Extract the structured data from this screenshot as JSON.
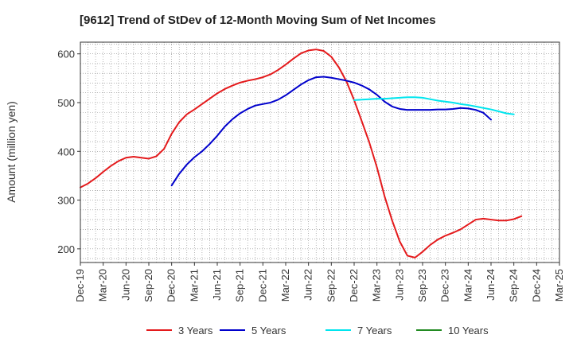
{
  "chart_data": {
    "type": "line",
    "title": "[9612]  Trend of StDev of 12-Month Moving Sum of Net Incomes",
    "xlabel": "",
    "ylabel": "Amount (million yen)",
    "ylim": [
      172,
      624
    ],
    "yticks": [
      200,
      300,
      400,
      500,
      600
    ],
    "grid": true,
    "legend_position": "bottom",
    "x_categories": [
      "Dec-19",
      "Mar-20",
      "Jun-20",
      "Sep-20",
      "Dec-20",
      "Mar-21",
      "Jun-21",
      "Sep-21",
      "Dec-21",
      "Mar-22",
      "Jun-22",
      "Sep-22",
      "Dec-22",
      "Mar-23",
      "Jun-23",
      "Sep-23",
      "Dec-23",
      "Mar-24",
      "Jun-24",
      "Sep-24",
      "Dec-24",
      "Mar-25"
    ],
    "series": [
      {
        "name": "3 Years",
        "color": "#e41a1c",
        "start_index": 0,
        "values": [
          326,
          334,
          345,
          358,
          370,
          380,
          387,
          389,
          387,
          385,
          390,
          405,
          436,
          460,
          476,
          486,
          497,
          508,
          519,
          528,
          535,
          541,
          545,
          548,
          552,
          558,
          567,
          578,
          590,
          601,
          607,
          609,
          606,
          594,
          572,
          543,
          505,
          462,
          418,
          367,
          308,
          258,
          215,
          186,
          182,
          194,
          208,
          219,
          227,
          233,
          240,
          250,
          260,
          262,
          260,
          258,
          258,
          261,
          267
        ]
      },
      {
        "name": "5 Years",
        "color": "#0000cc",
        "start_index": 12,
        "values": [
          330,
          354,
          373,
          388,
          400,
          415,
          432,
          451,
          466,
          478,
          487,
          494,
          497,
          500,
          506,
          515,
          526,
          537,
          546,
          552,
          553,
          551,
          548,
          545,
          541,
          535,
          527,
          516,
          502,
          492,
          487,
          485,
          485,
          485,
          485,
          486,
          486,
          487,
          489,
          488,
          485,
          479,
          465
        ]
      },
      {
        "name": "7 Years",
        "color": "#00e5ee",
        "start_index": 36,
        "values": [
          505,
          506,
          507,
          508,
          508,
          509,
          510,
          511,
          511,
          510,
          507,
          504,
          502,
          500,
          497,
          495,
          492,
          489,
          486,
          482,
          478,
          476
        ]
      },
      {
        "name": "10 Years",
        "color": "#228b22",
        "start_index": 0,
        "values": []
      }
    ]
  }
}
